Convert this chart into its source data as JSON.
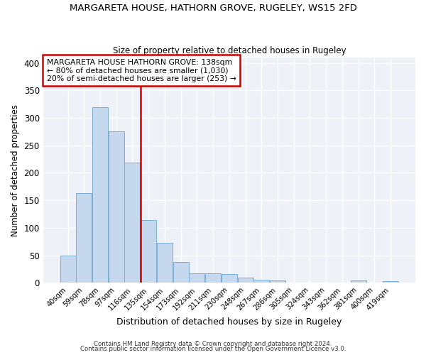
{
  "title": "MARGARETA HOUSE, HATHORN GROVE, RUGELEY, WS15 2FD",
  "subtitle": "Size of property relative to detached houses in Rugeley",
  "xlabel": "Distribution of detached houses by size in Rugeley",
  "ylabel": "Number of detached properties",
  "bar_color": "#c5d8ee",
  "bar_edge_color": "#7aaed4",
  "background_color": "#ffffff",
  "grid_color": "#d0d8e8",
  "bins": [
    "40sqm",
    "59sqm",
    "78sqm",
    "97sqm",
    "116sqm",
    "135sqm",
    "154sqm",
    "173sqm",
    "192sqm",
    "211sqm",
    "230sqm",
    "248sqm",
    "267sqm",
    "286sqm",
    "305sqm",
    "324sqm",
    "343sqm",
    "362sqm",
    "381sqm",
    "400sqm",
    "419sqm"
  ],
  "values": [
    49,
    163,
    320,
    276,
    219,
    114,
    73,
    38,
    17,
    17,
    16,
    9,
    6,
    4,
    0,
    0,
    0,
    0,
    4,
    0,
    3
  ],
  "ylim": [
    0,
    410
  ],
  "yticks": [
    0,
    50,
    100,
    150,
    200,
    250,
    300,
    350,
    400
  ],
  "marker_bin_index": 5,
  "marker_color": "#cc0000",
  "annotation_line1": "MARGARETA HOUSE HATHORN GROVE: 138sqm",
  "annotation_line2": "← 80% of detached houses are smaller (1,030)",
  "annotation_line3": "20% of semi-detached houses are larger (253) →",
  "footer1": "Contains HM Land Registry data © Crown copyright and database right 2024.",
  "footer2": "Contains public sector information licensed under the Open Government Licence v3.0."
}
